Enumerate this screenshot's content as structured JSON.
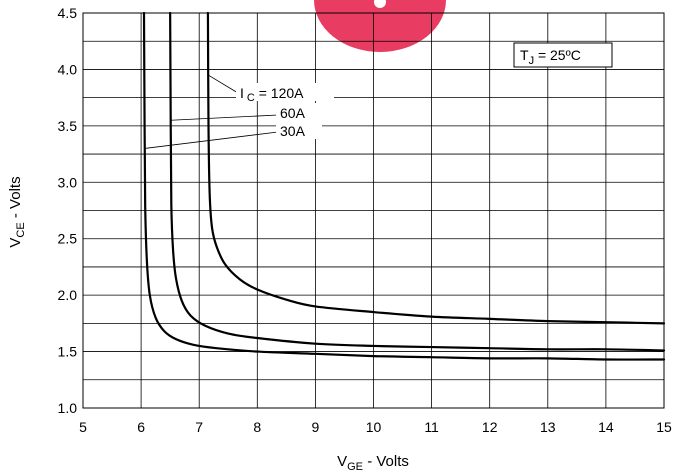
{
  "chart_data": {
    "type": "line",
    "xlabel_main": "V",
    "xlabel_sub": "GE",
    "xlabel_rest": " - Volts",
    "ylabel_main": "V",
    "ylabel_sub": "CE",
    "ylabel_rest": " - Volts",
    "xlim": [
      5,
      15
    ],
    "ylim": [
      1.0,
      4.5
    ],
    "x_ticks": [
      "5",
      "6",
      "7",
      "8",
      "9",
      "10",
      "11",
      "12",
      "13",
      "14",
      "15"
    ],
    "y_ticks": [
      "1.0",
      "1.5",
      "2.0",
      "2.5",
      "3.0",
      "3.5",
      "4.0",
      "4.5"
    ],
    "grid": true,
    "condition": {
      "main": "T",
      "sub": "J",
      "rest": " = 25ºC"
    },
    "series_labels": {
      "ic_prefix": "I",
      "ic_sub": "C",
      "ic_120": " = 120A",
      "ic_60": "60A",
      "ic_30": "30A"
    },
    "series": [
      {
        "name": "30A",
        "x": [
          6.05,
          6.06,
          6.07,
          6.1,
          6.15,
          6.25,
          6.4,
          6.6,
          6.9,
          7.3,
          8.0,
          9.0,
          10.0,
          11.0,
          12.0,
          13.0,
          14.0,
          15.0
        ],
        "y": [
          4.5,
          3.5,
          2.8,
          2.3,
          2.0,
          1.8,
          1.68,
          1.61,
          1.56,
          1.53,
          1.5,
          1.48,
          1.46,
          1.45,
          1.44,
          1.44,
          1.43,
          1.43
        ]
      },
      {
        "name": "60A",
        "x": [
          6.5,
          6.51,
          6.52,
          6.55,
          6.6,
          6.7,
          6.85,
          7.1,
          7.5,
          8.0,
          9.0,
          10.0,
          11.0,
          12.0,
          13.0,
          14.0,
          15.0
        ],
        "y": [
          4.5,
          3.5,
          2.8,
          2.4,
          2.15,
          1.95,
          1.82,
          1.73,
          1.66,
          1.62,
          1.57,
          1.55,
          1.54,
          1.53,
          1.52,
          1.52,
          1.51
        ]
      },
      {
        "name": "120A",
        "x": [
          7.15,
          7.16,
          7.18,
          7.22,
          7.3,
          7.45,
          7.7,
          8.0,
          8.5,
          9.0,
          10.0,
          11.0,
          12.0,
          13.0,
          14.0,
          15.0
        ],
        "y": [
          4.5,
          3.5,
          2.9,
          2.6,
          2.43,
          2.27,
          2.14,
          2.05,
          1.96,
          1.9,
          1.85,
          1.81,
          1.79,
          1.77,
          1.76,
          1.75
        ]
      }
    ],
    "colors": {
      "line": "#000000",
      "grid": "#000000",
      "watermark": "#e8325a"
    }
  }
}
